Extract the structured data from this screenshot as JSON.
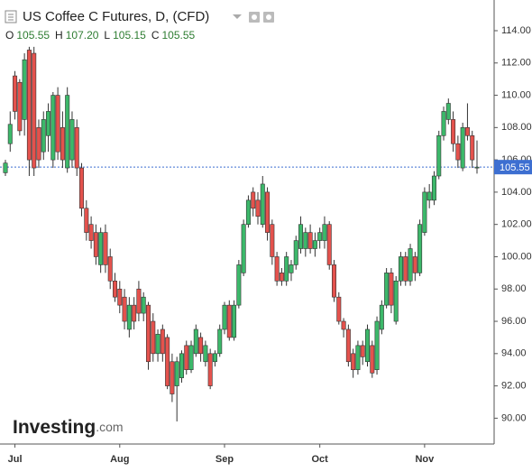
{
  "chart_data": {
    "type": "candlestick",
    "title": "US Coffee C Futures, D, (CFD)",
    "ohlc_header": [
      {
        "label": "O",
        "value": 105.55
      },
      {
        "label": "H",
        "value": 107.2
      },
      {
        "label": "L",
        "value": 105.15
      },
      {
        "label": "C",
        "value": 105.55
      }
    ],
    "ohlc_value_labels": [
      "105.55",
      "107.20",
      "105.15",
      "105.55"
    ],
    "last_price": 105.55,
    "watermark": {
      "brand": "Investing",
      "suffix": ".com"
    },
    "up_color": "#3cb86a",
    "down_color": "#e4524d",
    "ylim": [
      88.4,
      115.9
    ],
    "yticks": [
      {
        "value": 90,
        "label": "90.00"
      },
      {
        "value": 92,
        "label": "92.00"
      },
      {
        "value": 94,
        "label": "94.00"
      },
      {
        "value": 96,
        "label": "96.00"
      },
      {
        "value": 98,
        "label": "98.00"
      },
      {
        "value": 100,
        "label": "100.00"
      },
      {
        "value": 102,
        "label": "102.00"
      },
      {
        "value": 104,
        "label": "104.00"
      },
      {
        "value": 106,
        "label": "106.00"
      },
      {
        "value": 108,
        "label": "108.00"
      },
      {
        "value": 110,
        "label": "110.00"
      },
      {
        "value": 112,
        "label": "112.00"
      },
      {
        "value": 114,
        "label": "114.00"
      }
    ],
    "categories": [
      null,
      null,
      "Jul",
      null,
      null,
      null,
      null,
      null,
      null,
      null,
      null,
      null,
      null,
      null,
      null,
      null,
      null,
      null,
      null,
      null,
      null,
      null,
      null,
      null,
      "Aug",
      null,
      null,
      null,
      null,
      null,
      null,
      null,
      null,
      null,
      null,
      null,
      null,
      null,
      null,
      null,
      null,
      null,
      null,
      null,
      null,
      null,
      "Sep",
      null,
      null,
      null,
      null,
      null,
      null,
      null,
      null,
      null,
      null,
      null,
      null,
      null,
      null,
      null,
      null,
      null,
      null,
      null,
      "Oct",
      null,
      null,
      null,
      null,
      null,
      null,
      null,
      null,
      null,
      null,
      null,
      null,
      null,
      null,
      null,
      null,
      null,
      null,
      null,
      null,
      null,
      "Nov",
      null,
      null,
      null,
      null,
      null,
      null,
      null,
      null,
      null,
      null,
      null
    ],
    "open": [
      105.2,
      107,
      111.2,
      110.8,
      108.5,
      112.8,
      112.6,
      108,
      106.5,
      107.5,
      106,
      110,
      108,
      105.5,
      106,
      108,
      105.5,
      103,
      102,
      101.5,
      99.5,
      101.5,
      100,
      98.5,
      98,
      97.5,
      95.5,
      97,
      98,
      96.5,
      97,
      96,
      94,
      95.5,
      95,
      93.5,
      92,
      92.5,
      94.5,
      93,
      94,
      95,
      93.5,
      94,
      93.5,
      94,
      95.5,
      97,
      95,
      97,
      99,
      102,
      104,
      103.5,
      102,
      104,
      102,
      100,
      99,
      98.5,
      99,
      99.5,
      100.5,
      100.5,
      101.5,
      100.5,
      101,
      101,
      102,
      99.5,
      97.5,
      96,
      95.5,
      94,
      93,
      94.5,
      93.5,
      94.5,
      93,
      95.5,
      97,
      99,
      96,
      98.5,
      100,
      98.5,
      100,
      99,
      101.5,
      103.5,
      103.5,
      105,
      107.5,
      108.5,
      108.5,
      107,
      105.5,
      108,
      107.5,
      105.55
    ],
    "high": [
      106,
      109,
      111.5,
      111,
      112.6,
      113,
      113,
      108.5,
      109,
      109.5,
      110.2,
      110.5,
      109,
      110.5,
      109,
      108.5,
      105.8,
      103.5,
      102.5,
      102,
      101.8,
      102,
      100.5,
      99,
      98.5,
      98,
      97.5,
      97.5,
      98.5,
      97.8,
      97.2,
      96.5,
      95.5,
      95.8,
      95.2,
      94,
      93.8,
      94.2,
      94.8,
      94.8,
      95.8,
      95.3,
      94.8,
      94.3,
      94.2,
      95.8,
      97.2,
      97.3,
      97.3,
      99.8,
      102.3,
      103.8,
      104.3,
      104,
      105,
      104.3,
      102.3,
      100.3,
      99.3,
      100.3,
      99.8,
      101.3,
      102.5,
      101.8,
      102,
      101.5,
      101.8,
      102.5,
      102.2,
      99.8,
      97.8,
      96.2,
      95.8,
      94.3,
      94.8,
      94.8,
      95.8,
      94.8,
      96.3,
      97.3,
      99.3,
      99.3,
      98.8,
      100.3,
      100.3,
      100.8,
      100.3,
      102.3,
      104.3,
      104.5,
      105.3,
      107.8,
      109.3,
      109.8,
      109,
      107.5,
      108.3,
      109.5,
      107.8,
      107.2
    ],
    "low": [
      105,
      106.5,
      108.5,
      107.5,
      107.5,
      105,
      105,
      105.5,
      106,
      106.5,
      105.5,
      106,
      105.5,
      105.2,
      105.5,
      105,
      102.5,
      101,
      100.5,
      99.5,
      99,
      99,
      98,
      97.2,
      96.5,
      95.5,
      95,
      95.5,
      96,
      96,
      93,
      93.5,
      93.5,
      93.5,
      91.8,
      91,
      89.8,
      92.2,
      92.7,
      92.8,
      93.8,
      93.5,
      93.2,
      91.8,
      93.2,
      93.8,
      95.2,
      94.8,
      94.8,
      96.8,
      98.8,
      101.8,
      102.5,
      102,
      101.8,
      101,
      99.5,
      98.2,
      98.2,
      98.2,
      98.5,
      99.2,
      100.2,
      100,
      100.2,
      100,
      100.5,
      100.5,
      99.2,
      97.2,
      95.8,
      95,
      93.2,
      92.5,
      92.7,
      93.3,
      93.2,
      92.5,
      92.7,
      95.2,
      96.8,
      96.5,
      95.8,
      98.2,
      98.2,
      98.2,
      98.5,
      98.8,
      101.3,
      103,
      103.2,
      104.8,
      107.2,
      108.2,
      106.5,
      105.5,
      105.3,
      107.2,
      105.5,
      105.15
    ],
    "close": [
      105.8,
      108.2,
      109,
      107.8,
      112.2,
      106,
      105.5,
      106,
      108.5,
      109,
      110,
      106.5,
      106,
      110,
      108.5,
      105.5,
      103,
      101.5,
      101,
      100,
      101.5,
      99.5,
      98.5,
      97.5,
      97,
      96,
      97,
      96,
      96.5,
      97.5,
      93.5,
      94,
      95.2,
      94,
      92,
      91.5,
      93.5,
      94,
      93,
      94.5,
      95.5,
      94,
      94.5,
      92,
      94,
      95.5,
      97,
      95,
      97,
      99.5,
      102,
      103.5,
      103,
      102.5,
      104.5,
      101.5,
      100,
      98.5,
      98.5,
      100,
      99.5,
      101,
      102,
      101.5,
      100.5,
      101,
      101.5,
      102,
      99.5,
      97.5,
      96,
      95.5,
      93.5,
      93,
      94.5,
      93.8,
      95.5,
      92.8,
      96,
      97,
      99,
      97,
      98.5,
      100,
      98.5,
      100.5,
      99,
      102,
      104,
      104,
      105,
      107.5,
      109,
      109.5,
      107,
      106,
      108,
      107.5,
      106,
      105.55
    ]
  }
}
